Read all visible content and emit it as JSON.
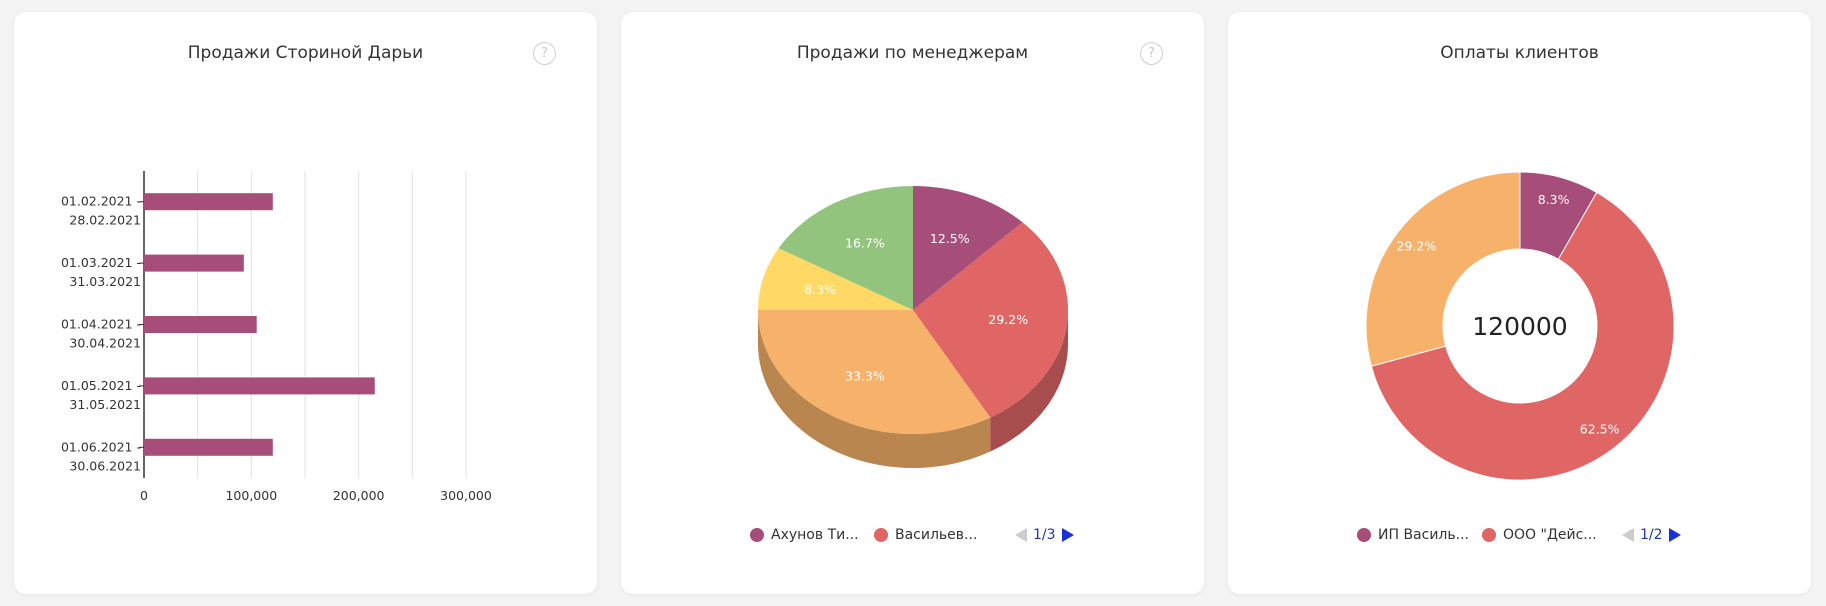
{
  "cards": [
    {
      "title": "Продажи Сториной Дарьи",
      "help_icon": "?"
    },
    {
      "title": "Продажи по менеджерам",
      "help_icon": "?"
    },
    {
      "title": "Оплаты клиентов"
    }
  ],
  "colors": {
    "plum": "#a64d79",
    "red": "#e06666",
    "orange": "#f6b26b",
    "yellow": "#ffd966",
    "green": "#93c47d",
    "pager_active": "#1a2fd8",
    "pager_inactive": "#cccccc"
  },
  "chart_data": [
    {
      "type": "bar",
      "orientation": "horizontal",
      "title": "Продажи Сториной Дарьи",
      "categories": [
        [
          "01.02.2021 -",
          "28.02.2021"
        ],
        [
          "01.03.2021 -",
          "31.03.2021"
        ],
        [
          "01.04.2021 -",
          "30.04.2021"
        ],
        [
          "01.05.2021 -",
          "31.05.2021"
        ],
        [
          "01.06.2021 -",
          "30.06.2021"
        ]
      ],
      "values": [
        120000,
        93000,
        105000,
        215000,
        120000
      ],
      "xlim": [
        0,
        300000
      ],
      "xticks": [
        0,
        100000,
        200000,
        300000
      ],
      "xtick_labels": [
        "0",
        "100,000",
        "200,000",
        "300,000"
      ],
      "grid_step": 50000,
      "color": "#a64d79"
    },
    {
      "type": "pie",
      "style": "3d",
      "title": "Продажи по менеджерам",
      "slices": [
        {
          "label": "12.5%",
          "value": 12.5,
          "color": "#a64d79"
        },
        {
          "label": "29.2%",
          "value": 29.2,
          "color": "#e06666"
        },
        {
          "label": "33.3%",
          "value": 33.3,
          "color": "#f6b26b"
        },
        {
          "label": "8.3%",
          "value": 8.3,
          "color": "#ffd966"
        },
        {
          "label": "16.7%",
          "value": 16.7,
          "color": "#93c47d"
        }
      ],
      "legend": [
        {
          "name": "Ахунов Ти...",
          "color": "#a64d79"
        },
        {
          "name": "Васильев...",
          "color": "#e06666"
        }
      ],
      "legend_page": "1/3"
    },
    {
      "type": "pie",
      "style": "donut",
      "title": "Оплаты клиентов",
      "center_label": "120000",
      "slices": [
        {
          "label": "8.3%",
          "value": 8.3,
          "color": "#a64d79"
        },
        {
          "label": "62.5%",
          "value": 62.5,
          "color": "#e06666"
        },
        {
          "label": "29.2%",
          "value": 29.2,
          "color": "#f6b26b"
        }
      ],
      "legend": [
        {
          "name": "ИП Василь...",
          "color": "#a64d79"
        },
        {
          "name": "ООО \"Дейс...",
          "color": "#e06666"
        }
      ],
      "legend_page": "1/2"
    }
  ]
}
